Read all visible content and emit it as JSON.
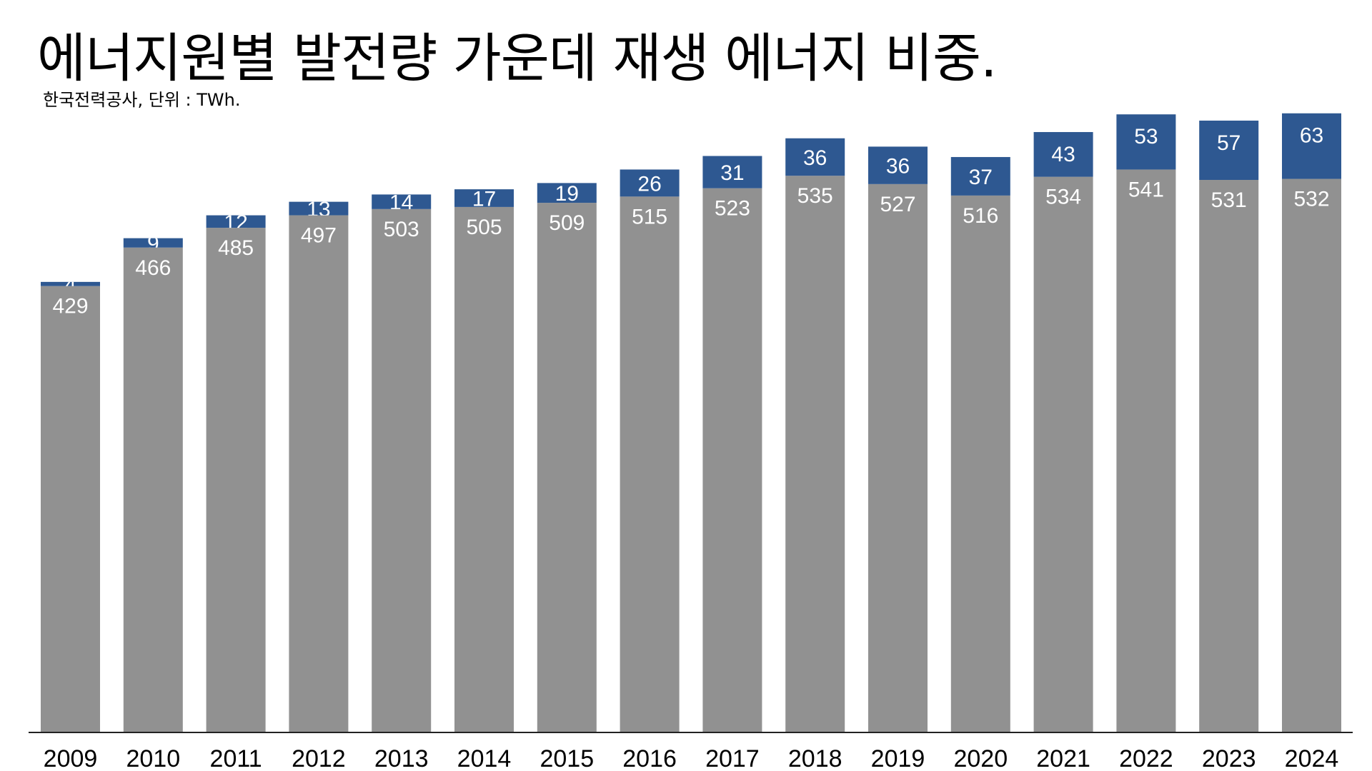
{
  "chart_data": {
    "type": "bar",
    "stacked": true,
    "title": "에너지원별 발전량 가운데 재생 에너지 비중.",
    "subtitle": "한국전력공사, 단위 : TWh.",
    "xlabel": "",
    "ylabel": "",
    "ylim": [
      0,
      660
    ],
    "grid": false,
    "legend": "none",
    "categories": [
      "2009",
      "2010",
      "2011",
      "2012",
      "2013",
      "2014",
      "2015",
      "2016",
      "2017",
      "2018",
      "2019",
      "2020",
      "2021",
      "2022",
      "2023",
      "2024"
    ],
    "series": [
      {
        "values": [
          429,
          466,
          485,
          497,
          503,
          505,
          509,
          515,
          523,
          535,
          527,
          516,
          534,
          541,
          531,
          532
        ],
        "color": "#919191"
      },
      {
        "values": [
          4,
          9,
          12,
          13,
          14,
          17,
          19,
          26,
          31,
          36,
          36,
          37,
          43,
          53,
          57,
          63
        ],
        "color": "#2e5891"
      }
    ]
  }
}
